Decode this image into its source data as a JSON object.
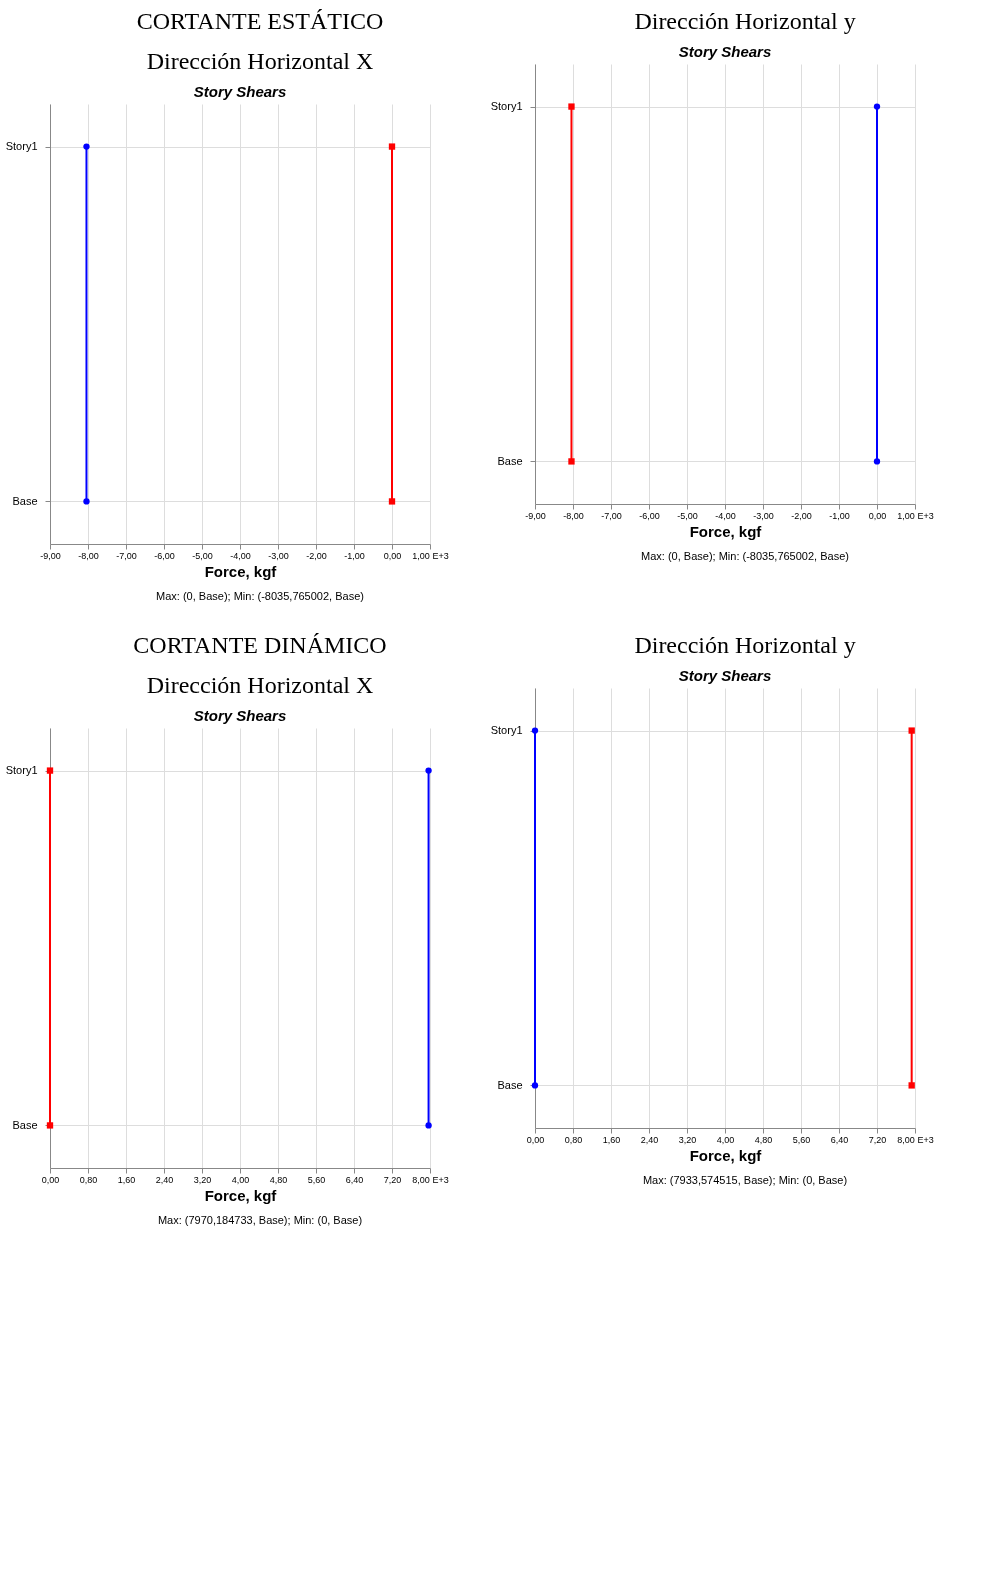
{
  "chart_data": [
    {
      "type": "line",
      "orientation": "horizontal",
      "title": "Story Shears",
      "xlabel": "Force, kgf",
      "annotations": [
        "CORTANTE ESTÁTICO",
        "Dirección Horizontal X",
        "Max: (0, Base);   Min: (-8035,765002, Base)"
      ],
      "categories": [
        "Story1",
        "Base"
      ],
      "xlim": [
        -9,
        1
      ],
      "xticks": [
        {
          "value": -9,
          "label": "-9,00"
        },
        {
          "value": -8,
          "label": "-8,00"
        },
        {
          "value": -7,
          "label": "-7,00"
        },
        {
          "value": -6,
          "label": "-6,00"
        },
        {
          "value": -5,
          "label": "-5,00"
        },
        {
          "value": -4,
          "label": "-4,00"
        },
        {
          "value": -3,
          "label": "-3,00"
        },
        {
          "value": -2,
          "label": "-2,00"
        },
        {
          "value": -1,
          "label": "-1,00"
        },
        {
          "value": 0,
          "label": "0,00"
        },
        {
          "value": 1,
          "label": "1,00 E+3"
        }
      ],
      "grid": true,
      "line_style": "solid",
      "series": [
        {
          "color": "#0000ff",
          "marker": "circle",
          "values": [
            -8.04,
            -8.04
          ]
        },
        {
          "color": "#ff0000",
          "marker": "square",
          "values": [
            0,
            0
          ]
        }
      ]
    },
    {
      "type": "line",
      "orientation": "horizontal",
      "title": "Story Shears",
      "xlabel": "Force, kgf",
      "annotations": [
        "Dirección Horizontal y",
        "Max: (0, Base);   Min: (-8035,765002, Base)"
      ],
      "categories": [
        "Story1",
        "Base"
      ],
      "xlim": [
        -9,
        1
      ],
      "xticks": [
        {
          "value": -9,
          "label": "-9,00"
        },
        {
          "value": -8,
          "label": "-8,00"
        },
        {
          "value": -7,
          "label": "-7,00"
        },
        {
          "value": -6,
          "label": "-6,00"
        },
        {
          "value": -5,
          "label": "-5,00"
        },
        {
          "value": -4,
          "label": "-4,00"
        },
        {
          "value": -3,
          "label": "-3,00"
        },
        {
          "value": -2,
          "label": "-2,00"
        },
        {
          "value": -1,
          "label": "-1,00"
        },
        {
          "value": 0,
          "label": "0,00"
        },
        {
          "value": 1,
          "label": "1,00 E+3"
        }
      ],
      "grid": true,
      "line_style": "solid",
      "series": [
        {
          "color": "#ff0000",
          "marker": "square",
          "values": [
            -8.04,
            -8.04
          ]
        },
        {
          "color": "#0000ff",
          "marker": "circle",
          "values": [
            0,
            0
          ]
        }
      ]
    },
    {
      "type": "line",
      "orientation": "horizontal",
      "title": "Story Shears",
      "xlabel": "Force, kgf",
      "annotations": [
        "CORTANTE DINÁMICO",
        "Dirección Horizontal X",
        "Max: (7970,184733, Base);   Min: (0, Base)"
      ],
      "categories": [
        "Story1",
        "Base"
      ],
      "xlim": [
        0,
        8
      ],
      "xticks": [
        {
          "value": 0,
          "label": "0,00"
        },
        {
          "value": 0.8,
          "label": "0,80"
        },
        {
          "value": 1.6,
          "label": "1,60"
        },
        {
          "value": 2.4,
          "label": "2,40"
        },
        {
          "value": 3.2,
          "label": "3,20"
        },
        {
          "value": 4,
          "label": "4,00"
        },
        {
          "value": 4.8,
          "label": "4,80"
        },
        {
          "value": 5.6,
          "label": "5,60"
        },
        {
          "value": 6.4,
          "label": "6,40"
        },
        {
          "value": 7.2,
          "label": "7,20"
        },
        {
          "value": 8,
          "label": "8,00 E+3"
        }
      ],
      "grid": true,
      "line_style": "solid",
      "series": [
        {
          "color": "#0000ff",
          "marker": "circle",
          "values": [
            7.97,
            7.97
          ]
        },
        {
          "color": "#ff0000",
          "marker": "square",
          "values": [
            0,
            0
          ]
        }
      ]
    },
    {
      "type": "line",
      "orientation": "horizontal",
      "title": "Story Shears",
      "xlabel": "Force, kgf",
      "annotations": [
        "Dirección Horizontal y",
        "Max: (7933,574515, Base);   Min: (0, Base)"
      ],
      "categories": [
        "Story1",
        "Base"
      ],
      "xlim": [
        0,
        8
      ],
      "xticks": [
        {
          "value": 0,
          "label": "0,00"
        },
        {
          "value": 0.8,
          "label": "0,80"
        },
        {
          "value": 1.6,
          "label": "1,60"
        },
        {
          "value": 2.4,
          "label": "2,40"
        },
        {
          "value": 3.2,
          "label": "3,20"
        },
        {
          "value": 4,
          "label": "4,00"
        },
        {
          "value": 4.8,
          "label": "4,80"
        },
        {
          "value": 5.6,
          "label": "5,60"
        },
        {
          "value": 6.4,
          "label": "6,40"
        },
        {
          "value": 7.2,
          "label": "7,20"
        },
        {
          "value": 8,
          "label": "8,00 E+3"
        }
      ],
      "grid": true,
      "line_style": "solid",
      "series": [
        {
          "color": "#ff0000",
          "marker": "square",
          "values": [
            7.93,
            7.93
          ]
        },
        {
          "color": "#0000ff",
          "marker": "circle",
          "values": [
            0,
            0
          ]
        }
      ]
    }
  ]
}
